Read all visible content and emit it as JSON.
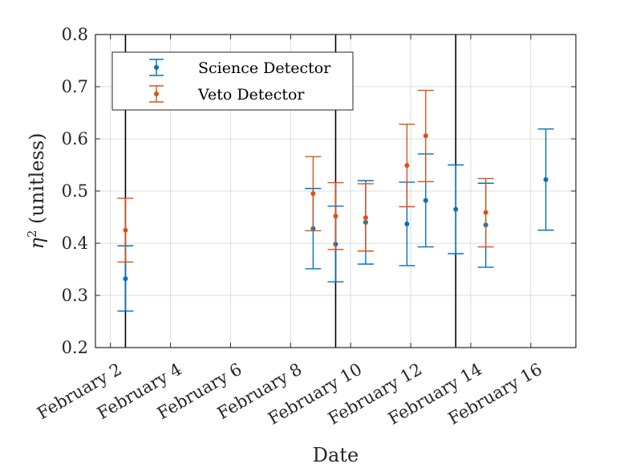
{
  "chart_data": {
    "type": "scatter",
    "title": "",
    "xlabel": "Date",
    "ylabel_symbol": "η",
    "ylabel_sup": "2",
    "ylabel_rest": " (unitless)",
    "x_axis": "date",
    "xlim": [
      "2024-02-01T12:00",
      "2024-02-17T12:00"
    ],
    "ylim": [
      0.2,
      0.8
    ],
    "xticks": [
      {
        "date": "2024-02-02",
        "label": "February 2"
      },
      {
        "date": "2024-02-04",
        "label": "February 4"
      },
      {
        "date": "2024-02-06",
        "label": "February 6"
      },
      {
        "date": "2024-02-08",
        "label": "February 8"
      },
      {
        "date": "2024-02-10",
        "label": "February 10"
      },
      {
        "date": "2024-02-12",
        "label": "February 12"
      },
      {
        "date": "2024-02-14",
        "label": "February 14"
      },
      {
        "date": "2024-02-16",
        "label": "February 16"
      }
    ],
    "yticks": [
      {
        "value": 0.2,
        "label": "0.2"
      },
      {
        "value": 0.3,
        "label": "0.3"
      },
      {
        "value": 0.4,
        "label": "0.4"
      },
      {
        "value": 0.5,
        "label": "0.5"
      },
      {
        "value": 0.6,
        "label": "0.6"
      },
      {
        "value": 0.7,
        "label": "0.7"
      },
      {
        "value": 0.8,
        "label": "0.8"
      }
    ],
    "grid": true,
    "legend_position": "top-left",
    "vertical_lines": [
      "2024-02-02T12:00",
      "2024-02-09T12:00",
      "2024-02-13T12:00"
    ],
    "series": [
      {
        "name": "Science Detector",
        "color": "#0072BD",
        "points": [
          {
            "x": "2024-02-02T12:00",
            "y": 0.332,
            "low": 0.27,
            "high": 0.395
          },
          {
            "x": "2024-02-08T18:00",
            "y": 0.428,
            "low": 0.351,
            "high": 0.505
          },
          {
            "x": "2024-02-09T12:00",
            "y": 0.398,
            "low": 0.326,
            "high": 0.471
          },
          {
            "x": "2024-02-10T12:00",
            "y": 0.44,
            "low": 0.36,
            "high": 0.52
          },
          {
            "x": "2024-02-11T21:00",
            "y": 0.437,
            "low": 0.357,
            "high": 0.517
          },
          {
            "x": "2024-02-12T12:00",
            "y": 0.482,
            "low": 0.393,
            "high": 0.571
          },
          {
            "x": "2024-02-13T12:00",
            "y": 0.465,
            "low": 0.38,
            "high": 0.55
          },
          {
            "x": "2024-02-14T12:00",
            "y": 0.435,
            "low": 0.354,
            "high": 0.515
          },
          {
            "x": "2024-02-16T12:00",
            "y": 0.522,
            "low": 0.425,
            "high": 0.619
          }
        ]
      },
      {
        "name": "Veto Detector",
        "color": "#D95319",
        "points": [
          {
            "x": "2024-02-02T12:00",
            "y": 0.425,
            "low": 0.364,
            "high": 0.486
          },
          {
            "x": "2024-02-08T18:00",
            "y": 0.495,
            "low": 0.424,
            "high": 0.566
          },
          {
            "x": "2024-02-09T12:00",
            "y": 0.452,
            "low": 0.388,
            "high": 0.516
          },
          {
            "x": "2024-02-10T12:00",
            "y": 0.449,
            "low": 0.385,
            "high": 0.514
          },
          {
            "x": "2024-02-11T21:00",
            "y": 0.549,
            "low": 0.47,
            "high": 0.628
          },
          {
            "x": "2024-02-12T12:00",
            "y": 0.606,
            "low": 0.518,
            "high": 0.693
          },
          {
            "x": "2024-02-14T12:00",
            "y": 0.459,
            "low": 0.393,
            "high": 0.524
          }
        ]
      }
    ]
  }
}
